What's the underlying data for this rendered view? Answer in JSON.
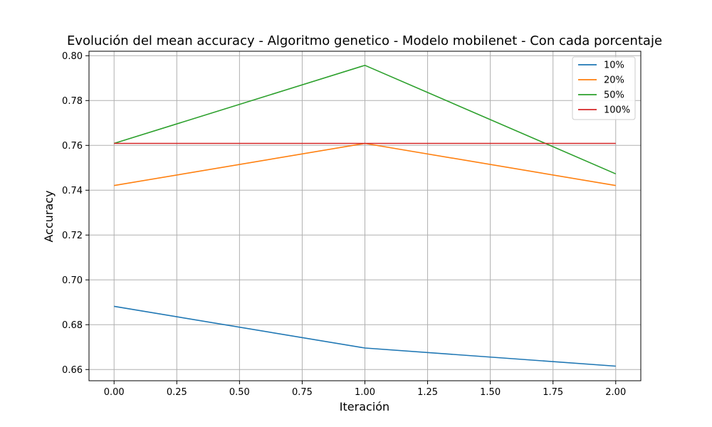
{
  "chart_data": {
    "type": "line",
    "title": "Evolución del mean accuracy - Algoritmo genetico - Modelo mobilenet - Con cada porcentaje",
    "xlabel": "Iteración",
    "ylabel": "Accuracy",
    "x": [
      0,
      1,
      2
    ],
    "xlim": [
      -0.1,
      2.1
    ],
    "ylim": [
      0.655,
      0.802
    ],
    "xticks": [
      0.0,
      0.25,
      0.5,
      0.75,
      1.0,
      1.25,
      1.5,
      1.75,
      2.0
    ],
    "xtick_labels": [
      "0.00",
      "0.25",
      "0.50",
      "0.75",
      "1.00",
      "1.25",
      "1.50",
      "1.75",
      "2.00"
    ],
    "yticks": [
      0.66,
      0.68,
      0.7,
      0.72,
      0.74,
      0.76,
      0.78,
      0.8
    ],
    "ytick_labels": [
      "0.66",
      "0.68",
      "0.70",
      "0.72",
      "0.74",
      "0.76",
      "0.78",
      "0.80"
    ],
    "grid": true,
    "legend_position": "top-right",
    "series": [
      {
        "name": "10%",
        "color": "#1f77b4",
        "values": [
          0.6882,
          0.6696,
          0.6615
        ]
      },
      {
        "name": "20%",
        "color": "#ff7f0e",
        "values": [
          0.7421,
          0.7609,
          0.7421
        ]
      },
      {
        "name": "50%",
        "color": "#2ca02c",
        "values": [
          0.7609,
          0.7957,
          0.7473
        ]
      },
      {
        "name": "100%",
        "color": "#d62728",
        "values": [
          0.7609,
          0.7609,
          0.7609
        ]
      }
    ]
  }
}
